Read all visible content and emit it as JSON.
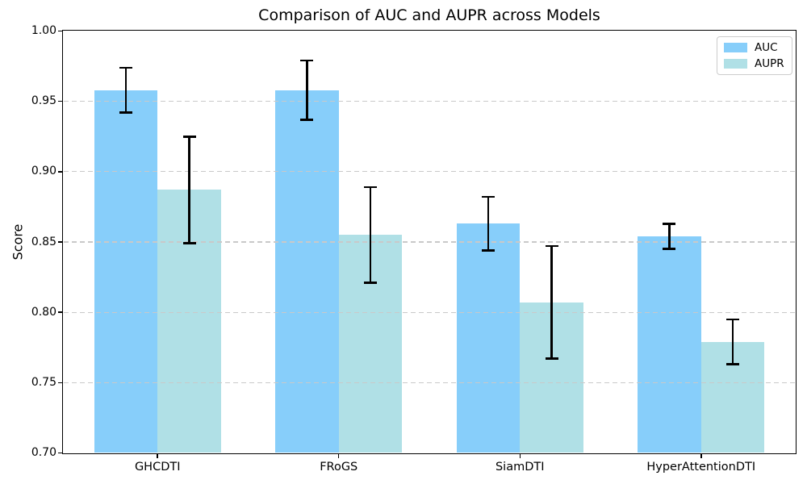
{
  "chart_data": {
    "type": "bar",
    "title": "Comparison of AUC and AUPR across Models",
    "xlabel": "",
    "ylabel": "Score",
    "categories": [
      "GHCDTI",
      "FRoGS",
      "SiamDTI",
      "HyperAttentionDTI"
    ],
    "series": [
      {
        "name": "AUC",
        "color": "#87CEFA",
        "values": [
          0.958,
          0.958,
          0.863,
          0.854
        ],
        "errors": [
          0.016,
          0.021,
          0.019,
          0.009
        ]
      },
      {
        "name": "AUPR",
        "color": "#B0E0E6",
        "values": [
          0.887,
          0.855,
          0.807,
          0.779
        ],
        "errors": [
          0.038,
          0.034,
          0.04,
          0.016
        ]
      }
    ],
    "ylim": [
      0.7,
      1.0
    ],
    "yticks": [
      0.7,
      0.75,
      0.8,
      0.85,
      0.9,
      0.95,
      1.0
    ],
    "ytick_format_decimals": 2,
    "bar_width": 0.35,
    "grid": "horizontal-dashed-above-bars",
    "gridline_color": "#c9c9c9",
    "error_bar_color": "#000000",
    "legend_position": "upper-right",
    "background_color": "#ffffff"
  }
}
